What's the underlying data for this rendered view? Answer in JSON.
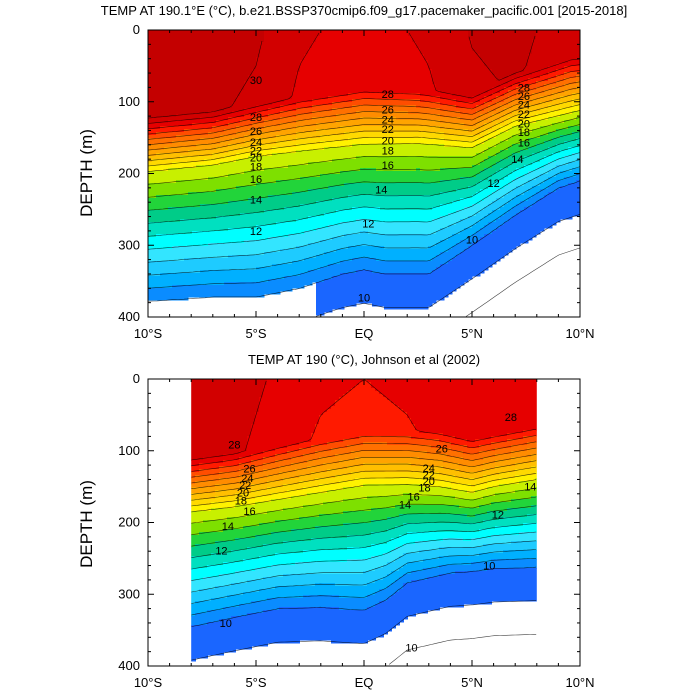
{
  "colors": {
    "temperature_levels": [
      {
        "min": 30,
        "color": "#c40000"
      },
      {
        "min": 29,
        "color": "#d20000"
      },
      {
        "min": 28,
        "color": "#e60000"
      },
      {
        "min": 27,
        "color": "#ff1a00"
      },
      {
        "min": 26,
        "color": "#ff4d00"
      },
      {
        "min": 25,
        "color": "#ff7000"
      },
      {
        "min": 24,
        "color": "#ff8c00"
      },
      {
        "min": 23,
        "color": "#ffa400"
      },
      {
        "min": 22,
        "color": "#ffbf00"
      },
      {
        "min": 21,
        "color": "#ffd900"
      },
      {
        "min": 20,
        "color": "#fff200"
      },
      {
        "min": 19,
        "color": "#c8f000"
      },
      {
        "min": 18,
        "color": "#7ee000"
      },
      {
        "min": 17,
        "color": "#22d43a"
      },
      {
        "min": 16,
        "color": "#00cc88"
      },
      {
        "min": 15,
        "color": "#00e0c0"
      },
      {
        "min": 14,
        "color": "#00ffff"
      },
      {
        "min": 13,
        "color": "#33e5ff"
      },
      {
        "min": 12,
        "color": "#1ecbff"
      },
      {
        "min": 11,
        "color": "#00b0ff"
      },
      {
        "min": 10,
        "color": "#0a8cff"
      },
      {
        "min": 9,
        "color": "#1a66ff"
      },
      {
        "min": -99,
        "color": "#0a40ee"
      }
    ]
  },
  "chart_data": [
    {
      "type": "contour",
      "title": "TEMP AT 190.1°E (°C), b.e21.BSSP370cmip6.f09_g17.pacemaker_pacific.001 [2015-2018]",
      "xlabel": "",
      "ylabel": "DEPTH (m)",
      "xlim": [
        -10,
        10
      ],
      "ylim": [
        400,
        0
      ],
      "x_ticks": [
        {
          "value": -10,
          "label": "10°S"
        },
        {
          "value": -5,
          "label": "5°S"
        },
        {
          "value": 0,
          "label": "EQ"
        },
        {
          "value": 5,
          "label": "5°N"
        },
        {
          "value": 10,
          "label": "10°N"
        }
      ],
      "y_ticks": [
        0,
        100,
        200,
        300,
        400
      ],
      "data_x_range": [
        -10,
        10
      ],
      "contour_interval": 1,
      "labeled_levels": [
        10,
        12,
        14,
        16,
        18,
        20,
        22,
        24,
        26,
        28,
        30
      ],
      "thermocline": {
        "latitudes": [
          -10,
          -7,
          -5,
          -2.5,
          0,
          2.5,
          5,
          7,
          10
        ],
        "depth_20c": [
          197,
          188,
          176,
          167,
          159,
          158,
          164,
          134,
          112
        ]
      },
      "deep_structure": {
        "latitudes": [
          -10,
          -7,
          -5,
          -3,
          -1,
          0,
          1,
          3,
          5,
          7,
          9,
          10
        ],
        "depth_10c": [
          378,
          372,
          372,
          360,
          340,
          334,
          340,
          340,
          300,
          258,
          220,
          210
        ]
      },
      "surface_temp": {
        "latitudes": [
          -10,
          -7,
          -5,
          -3,
          0,
          3,
          5,
          7,
          10
        ],
        "values": [
          30.6,
          30.6,
          30.2,
          29.2,
          28.6,
          29.2,
          30.1,
          30.4,
          29.2
        ]
      },
      "contour_labels": [
        {
          "level": 30,
          "lat": -5,
          "depth": 70
        },
        {
          "level": 28,
          "lat": -5,
          "depth": 121
        },
        {
          "level": 26,
          "lat": -5,
          "depth": 141
        },
        {
          "level": 24,
          "lat": -5,
          "depth": 156
        },
        {
          "level": 22,
          "lat": -5,
          "depth": 168
        },
        {
          "level": 20,
          "lat": -5,
          "depth": 178
        },
        {
          "level": 18,
          "lat": -5,
          "depth": 190
        },
        {
          "level": 16,
          "lat": -5,
          "depth": 208
        },
        {
          "level": 14,
          "lat": -5,
          "depth": 236
        },
        {
          "level": 12,
          "lat": -5,
          "depth": 280
        },
        {
          "level": 28,
          "lat": 1.1,
          "depth": 89
        },
        {
          "level": 26,
          "lat": 1.1,
          "depth": 111
        },
        {
          "level": 24,
          "lat": 1.1,
          "depth": 125
        },
        {
          "level": 22,
          "lat": 1.1,
          "depth": 138
        },
        {
          "level": 20,
          "lat": 1.1,
          "depth": 154
        },
        {
          "level": 18,
          "lat": 1.1,
          "depth": 168
        },
        {
          "level": 16,
          "lat": 1.1,
          "depth": 188
        },
        {
          "level": 14,
          "lat": 0.8,
          "depth": 222
        },
        {
          "level": 12,
          "lat": 0.2,
          "depth": 270
        },
        {
          "level": 10,
          "lat": 0,
          "depth": 373
        },
        {
          "level": 10,
          "lat": 5,
          "depth": 292
        },
        {
          "level": 12,
          "lat": 6,
          "depth": 213
        },
        {
          "level": 14,
          "lat": 7.1,
          "depth": 180
        },
        {
          "level": 16,
          "lat": 7.4,
          "depth": 157
        },
        {
          "level": 18,
          "lat": 7.4,
          "depth": 142
        },
        {
          "level": 20,
          "lat": 7.4,
          "depth": 130
        },
        {
          "level": 22,
          "lat": 7.4,
          "depth": 117
        },
        {
          "level": 24,
          "lat": 7.4,
          "depth": 104
        },
        {
          "level": 26,
          "lat": 7.4,
          "depth": 92
        },
        {
          "level": 28,
          "lat": 7.4,
          "depth": 80
        }
      ]
    },
    {
      "type": "contour",
      "title": "TEMP AT 190 (°C), Johnson et al (2002)",
      "xlabel": "",
      "ylabel": "DEPTH (m)",
      "xlim": [
        -10,
        10
      ],
      "ylim": [
        400,
        0
      ],
      "x_ticks": [
        {
          "value": -10,
          "label": "10°S"
        },
        {
          "value": -5,
          "label": "5°S"
        },
        {
          "value": 0,
          "label": "EQ"
        },
        {
          "value": 5,
          "label": "5°N"
        },
        {
          "value": 10,
          "label": "10°N"
        }
      ],
      "y_ticks": [
        0,
        100,
        200,
        300,
        400
      ],
      "data_x_range": [
        -8,
        8
      ],
      "contour_interval": 1,
      "labeled_levels": [
        10,
        12,
        14,
        16,
        18,
        20,
        22,
        24,
        26,
        28
      ],
      "thermocline": {
        "latitudes": [
          -8,
          -6,
          -4,
          -2,
          0,
          2,
          3.5,
          5,
          6,
          8
        ],
        "depth_20c": [
          185,
          178,
          168,
          158,
          148,
          147,
          150,
          158,
          150,
          140
        ]
      },
      "deep_structure": {
        "latitudes": [
          -8,
          -6,
          -4,
          -2,
          0,
          1,
          2,
          4,
          5,
          6,
          8
        ],
        "depth_10c": [
          345,
          332,
          320,
          318,
          322,
          308,
          284,
          270,
          268,
          264,
          262
        ]
      },
      "surface_temp": {
        "latitudes": [
          -8,
          -6,
          -4,
          -2,
          0,
          2,
          4,
          6,
          8
        ],
        "values": [
          29.8,
          29.6,
          28.8,
          28.2,
          28.0,
          28.2,
          28.6,
          29.0,
          28.8
        ]
      },
      "contour_labels": [
        {
          "level": 28,
          "lat": -6,
          "depth": 91
        },
        {
          "level": 26,
          "lat": -5.3,
          "depth": 125
        },
        {
          "level": 24,
          "lat": -5.4,
          "depth": 138
        },
        {
          "level": 22,
          "lat": -5.5,
          "depth": 148
        },
        {
          "level": 20,
          "lat": -5.6,
          "depth": 158
        },
        {
          "level": 18,
          "lat": -5.7,
          "depth": 169
        },
        {
          "level": 16,
          "lat": -5.3,
          "depth": 184
        },
        {
          "level": 14,
          "lat": -6.3,
          "depth": 205
        },
        {
          "level": 12,
          "lat": -6.6,
          "depth": 239
        },
        {
          "level": 10,
          "lat": -6.4,
          "depth": 340
        },
        {
          "level": 26,
          "lat": 3.6,
          "depth": 97
        },
        {
          "level": 24,
          "lat": 3.0,
          "depth": 124
        },
        {
          "level": 22,
          "lat": 3.0,
          "depth": 133
        },
        {
          "level": 20,
          "lat": 3.0,
          "depth": 142
        },
        {
          "level": 18,
          "lat": 2.8,
          "depth": 151
        },
        {
          "level": 16,
          "lat": 2.3,
          "depth": 164
        },
        {
          "level": 14,
          "lat": 1.9,
          "depth": 175
        },
        {
          "level": 12,
          "lat": 6.2,
          "depth": 189
        },
        {
          "level": 14,
          "lat": 7.7,
          "depth": 150
        },
        {
          "level": 10,
          "lat": 5.8,
          "depth": 260
        },
        {
          "level": 10,
          "lat": 2.2,
          "depth": 374
        },
        {
          "level": 28,
          "lat": 6.8,
          "depth": 53
        }
      ]
    }
  ]
}
